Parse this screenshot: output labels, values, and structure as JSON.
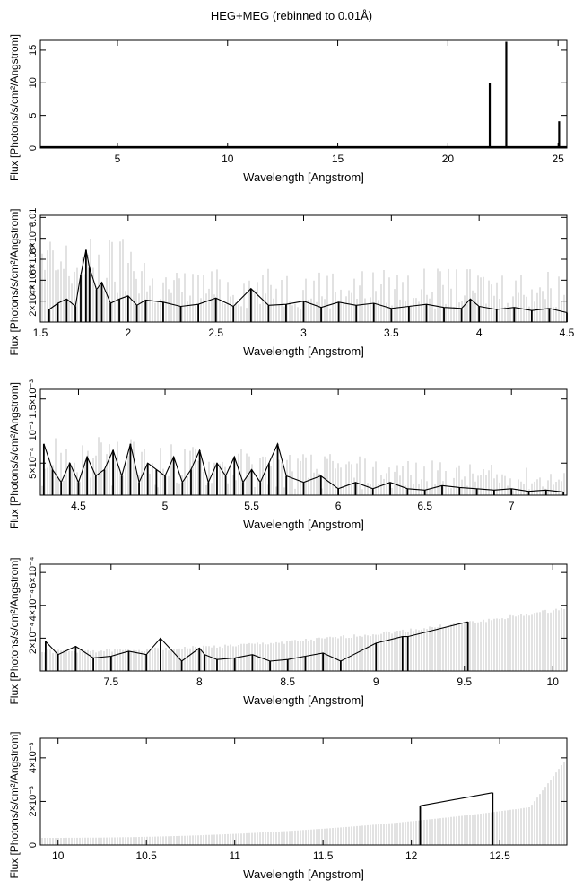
{
  "figure": {
    "title": "HEG+MEG (rebinned to 0.01Å)"
  },
  "chart_data": [
    {
      "type": "line",
      "xlabel": "Wavelength [Angstrom]",
      "ylabel": "Flux [Photons/s/cm²/Angstrom]",
      "xlim": [
        1.5,
        25.4
      ],
      "ylim": [
        0,
        16.5
      ],
      "xticks": [
        5,
        10,
        15,
        20,
        25
      ],
      "xtick_labels": [
        "5",
        "10",
        "15",
        "20",
        "25"
      ],
      "yticks": [
        0,
        5,
        10,
        15
      ],
      "ytick_labels": [
        "0",
        "5",
        "10",
        "15"
      ],
      "series": [
        {
          "x": [
            21.9,
            22.65,
            25.05
          ],
          "y": [
            10.0,
            16.3,
            4.1
          ]
        }
      ]
    },
    {
      "type": "line",
      "xlabel": "Wavelength [Angstrom]",
      "ylabel": "Flux [Photons/s/cm²/Angstrom]",
      "xlim": [
        1.5,
        4.5
      ],
      "ylim": [
        0,
        0.0102
      ],
      "xticks": [
        1.5,
        2,
        2.5,
        3,
        3.5,
        4,
        4.5
      ],
      "xtick_labels": [
        "1.5",
        "2",
        "2.5",
        "3",
        "3.5",
        "4",
        "4.5"
      ],
      "yticks": [
        0.002,
        0.004,
        0.006,
        0.008,
        0.01
      ],
      "ytick_labels": [
        "2×10⁻³",
        "4×10⁻³",
        "6×10⁻³",
        "8×10⁻³",
        "0.01"
      ],
      "series": [
        {
          "x": [
            1.55,
            1.6,
            1.65,
            1.7,
            1.73,
            1.76,
            1.78,
            1.82,
            1.85,
            1.9,
            1.95,
            2.0,
            2.05,
            2.1,
            2.2,
            2.3,
            2.4,
            2.5,
            2.6,
            2.7,
            2.8,
            2.9,
            3.0,
            3.1,
            3.2,
            3.3,
            3.4,
            3.5,
            3.6,
            3.7,
            3.8,
            3.9,
            3.95,
            4.0,
            4.1,
            4.2,
            4.3,
            4.4,
            4.5
          ],
          "y": [
            0.0012,
            0.0018,
            0.0022,
            0.0015,
            0.0045,
            0.0069,
            0.0052,
            0.0031,
            0.0038,
            0.0018,
            0.0022,
            0.0025,
            0.0016,
            0.0021,
            0.0019,
            0.0015,
            0.0017,
            0.0023,
            0.0015,
            0.0032,
            0.0016,
            0.0017,
            0.002,
            0.0014,
            0.0019,
            0.0016,
            0.0018,
            0.0013,
            0.0015,
            0.0017,
            0.0014,
            0.0013,
            0.0022,
            0.0015,
            0.0012,
            0.0014,
            0.0011,
            0.0013,
            0.0009
          ]
        }
      ]
    },
    {
      "type": "line",
      "xlabel": "Wavelength [Angstrom]",
      "ylabel": "Flux [Photons/s/cm²/Angstrom]",
      "xlim": [
        4.28,
        7.32
      ],
      "ylim": [
        0,
        0.00165
      ],
      "xticks": [
        4.5,
        5,
        5.5,
        6,
        6.5,
        7
      ],
      "xtick_labels": [
        "4.5",
        "5",
        "5.5",
        "6",
        "6.5",
        "7"
      ],
      "yticks": [
        0.0005,
        0.001,
        0.0015
      ],
      "ytick_labels": [
        "5×10⁻⁴",
        "10⁻³",
        "1.5×10⁻³"
      ],
      "series": [
        {
          "x": [
            4.3,
            4.35,
            4.4,
            4.45,
            4.5,
            4.55,
            4.6,
            4.65,
            4.7,
            4.75,
            4.8,
            4.85,
            4.9,
            4.95,
            5.0,
            5.05,
            5.1,
            5.15,
            5.2,
            5.25,
            5.3,
            5.35,
            5.4,
            5.45,
            5.5,
            5.55,
            5.6,
            5.65,
            5.7,
            5.8,
            5.9,
            6.0,
            6.1,
            6.2,
            6.3,
            6.4,
            6.5,
            6.6,
            6.7,
            6.8,
            6.9,
            7.0,
            7.1,
            7.2,
            7.3
          ],
          "y": [
            0.0008,
            0.0004,
            0.0002,
            0.0005,
            0.0002,
            0.0006,
            0.0003,
            0.0004,
            0.0007,
            0.0003,
            0.0008,
            0.0002,
            0.0005,
            0.0004,
            0.0003,
            0.0006,
            0.0002,
            0.0004,
            0.0007,
            0.0002,
            0.0005,
            0.0003,
            0.0006,
            0.0002,
            0.0004,
            0.0002,
            0.0005,
            0.0008,
            0.0003,
            0.0002,
            0.0003,
            0.0001,
            0.0002,
            0.0001,
            0.0002,
            0.0001,
            8e-05,
            0.00015,
            0.00012,
            0.0001,
            8e-05,
            0.0001,
            6e-05,
            8e-05,
            5e-05
          ]
        }
      ]
    },
    {
      "type": "line",
      "xlabel": "Wavelength [Angstrom]",
      "ylabel": "Flux [Photons/s/cm²/Angstrom]",
      "xlim": [
        7.1,
        10.08
      ],
      "ylim": [
        0,
        0.00065
      ],
      "xticks": [
        7.5,
        8,
        8.5,
        9,
        9.5,
        10
      ],
      "xtick_labels": [
        "7.5",
        "8",
        "8.5",
        "9",
        "9.5",
        "10"
      ],
      "yticks": [
        0.0002,
        0.0004,
        0.0006
      ],
      "ytick_labels": [
        "2×10⁻⁴",
        "4×10⁻⁴",
        "6×10⁻⁴"
      ],
      "series": [
        {
          "x": [
            7.13,
            7.2,
            7.3,
            7.4,
            7.5,
            7.6,
            7.7,
            7.78,
            7.9,
            8.0,
            8.03,
            8.1,
            8.2,
            8.3,
            8.4,
            8.5,
            8.6,
            8.7,
            8.8,
            9.0,
            9.15,
            9.18,
            9.52
          ],
          "y": [
            0.00018,
            0.0001,
            0.00015,
            8e-05,
            9e-05,
            0.00012,
            0.0001,
            0.0002,
            6e-05,
            0.00014,
            0.0001,
            7e-05,
            8e-05,
            0.0001,
            6e-05,
            7e-05,
            9e-05,
            0.00011,
            6e-05,
            0.00017,
            0.00021,
            0.00021,
            0.0003
          ]
        }
      ]
    },
    {
      "type": "line",
      "xlabel": "Wavelength [Angstrom]",
      "ylabel": "Flux [Photons/s/cm²/Angstrom]",
      "xlim": [
        9.9,
        12.88
      ],
      "ylim": [
        0,
        0.0049
      ],
      "xticks": [
        10,
        10.5,
        11,
        11.5,
        12,
        12.5
      ],
      "xtick_labels": [
        "10",
        "10.5",
        "11",
        "11.5",
        "12",
        "12.5"
      ],
      "yticks": [
        0,
        0.002,
        0.004
      ],
      "ytick_labels": [
        "0",
        "2×10⁻³",
        "4×10⁻³"
      ],
      "series": [
        {
          "x": [
            12.05,
            12.46
          ],
          "y": [
            0.0018,
            0.0024
          ]
        }
      ]
    }
  ]
}
